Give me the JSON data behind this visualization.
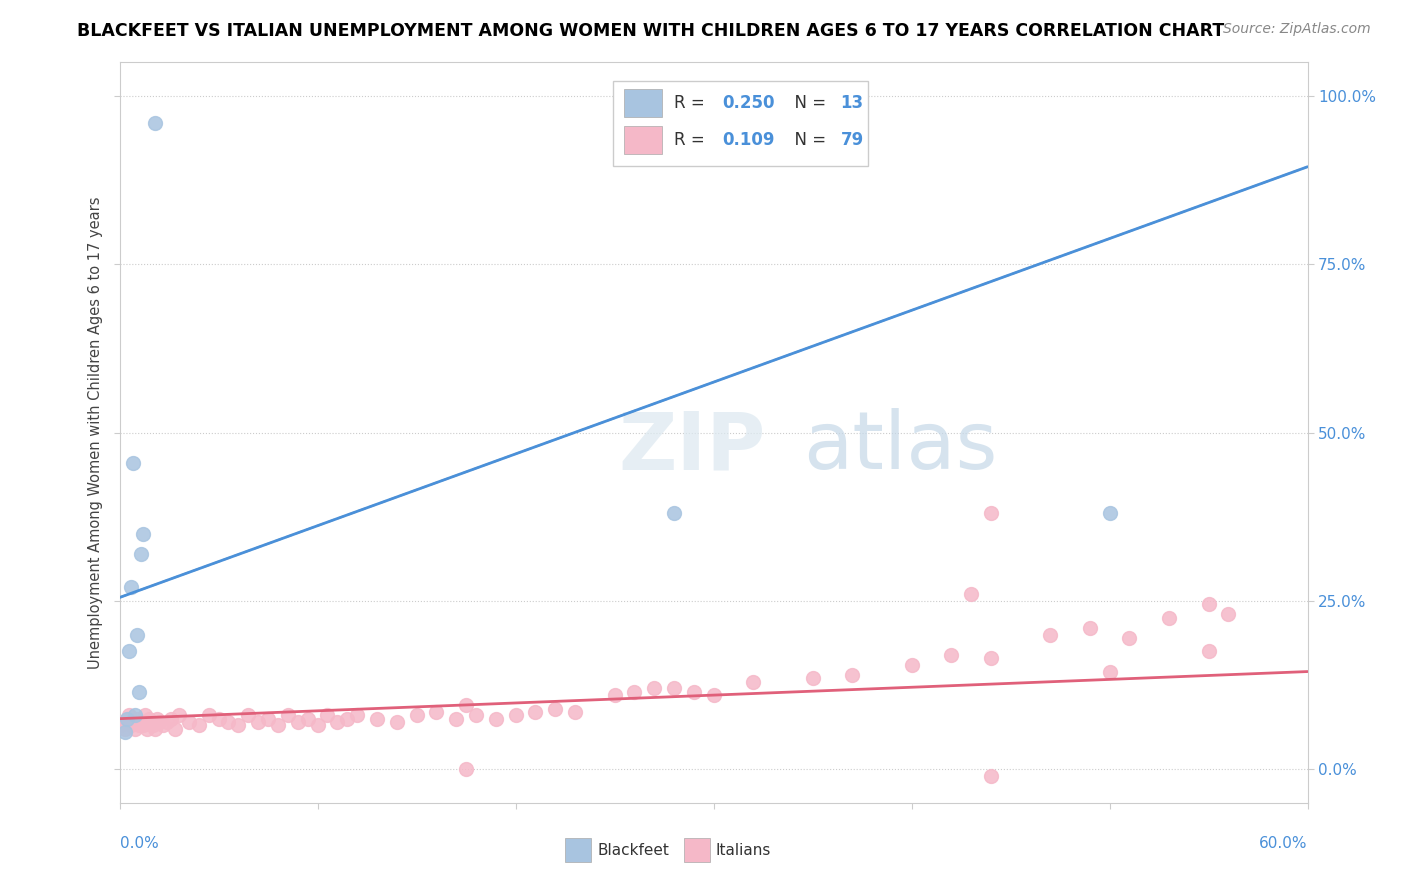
{
  "title": "BLACKFEET VS ITALIAN UNEMPLOYMENT AMONG WOMEN WITH CHILDREN AGES 6 TO 17 YEARS CORRELATION CHART",
  "source": "Source: ZipAtlas.com",
  "ylabel": "Unemployment Among Women with Children Ages 6 to 17 years",
  "legend_label1": "Blackfeet",
  "legend_label2": "Italians",
  "R1": 0.25,
  "N1": 13,
  "R2": 0.109,
  "N2": 79,
  "blackfeet_color": "#a8c4e0",
  "italian_color": "#f5b8c8",
  "line1_color": "#4a90d9",
  "line2_color": "#e0607a",
  "dashed_line_color": "#aaaaaa",
  "xmin": 0.0,
  "xmax": 0.6,
  "ymin": -0.05,
  "ymax": 1.05,
  "yticks": [
    0.0,
    0.25,
    0.5,
    0.75,
    1.0
  ],
  "right_tick_labels": [
    "0.0%",
    "25.0%",
    "50.0%",
    "75.0%",
    "100.0%"
  ],
  "blue_line_x": [
    0.0,
    0.6
  ],
  "blue_line_y": [
    0.255,
    0.895
  ],
  "dashed_line_x": [
    0.0,
    0.6
  ],
  "dashed_line_y": [
    0.255,
    0.895
  ],
  "pink_line_x": [
    0.0,
    0.6
  ],
  "pink_line_y": [
    0.075,
    0.145
  ],
  "blackfeet_x": [
    0.003,
    0.004,
    0.005,
    0.006,
    0.007,
    0.008,
    0.009,
    0.01,
    0.011,
    0.012,
    0.018,
    0.28,
    0.5
  ],
  "blackfeet_y": [
    0.055,
    0.075,
    0.175,
    0.27,
    0.455,
    0.08,
    0.2,
    0.115,
    0.32,
    0.35,
    0.96,
    0.38,
    0.38
  ],
  "italian_x": [
    0.001,
    0.002,
    0.003,
    0.004,
    0.005,
    0.006,
    0.007,
    0.008,
    0.009,
    0.01,
    0.011,
    0.012,
    0.013,
    0.014,
    0.015,
    0.016,
    0.017,
    0.018,
    0.019,
    0.02,
    0.022,
    0.024,
    0.026,
    0.028,
    0.03,
    0.035,
    0.04,
    0.045,
    0.05,
    0.055,
    0.06,
    0.065,
    0.07,
    0.075,
    0.08,
    0.085,
    0.09,
    0.095,
    0.1,
    0.105,
    0.11,
    0.115,
    0.12,
    0.13,
    0.14,
    0.15,
    0.16,
    0.17,
    0.175,
    0.18,
    0.19,
    0.2,
    0.21,
    0.22,
    0.23,
    0.25,
    0.26,
    0.27,
    0.28,
    0.29,
    0.3,
    0.32,
    0.35,
    0.37,
    0.4,
    0.42,
    0.44,
    0.47,
    0.49,
    0.51,
    0.53,
    0.55,
    0.56,
    0.44,
    0.43,
    0.55,
    0.175,
    0.5,
    0.44
  ],
  "italian_y": [
    0.065,
    0.07,
    0.06,
    0.075,
    0.08,
    0.065,
    0.07,
    0.06,
    0.075,
    0.065,
    0.07,
    0.065,
    0.08,
    0.06,
    0.075,
    0.07,
    0.065,
    0.06,
    0.075,
    0.07,
    0.065,
    0.07,
    0.075,
    0.06,
    0.08,
    0.07,
    0.065,
    0.08,
    0.075,
    0.07,
    0.065,
    0.08,
    0.07,
    0.075,
    0.065,
    0.08,
    0.07,
    0.075,
    0.065,
    0.08,
    0.07,
    0.075,
    0.08,
    0.075,
    0.07,
    0.08,
    0.085,
    0.075,
    0.095,
    0.08,
    0.075,
    0.08,
    0.085,
    0.09,
    0.085,
    0.11,
    0.115,
    0.12,
    0.12,
    0.115,
    0.11,
    0.13,
    0.135,
    0.14,
    0.155,
    0.17,
    0.165,
    0.2,
    0.21,
    0.195,
    0.225,
    0.245,
    0.23,
    0.38,
    0.26,
    0.175,
    0.0,
    0.145,
    -0.01
  ]
}
